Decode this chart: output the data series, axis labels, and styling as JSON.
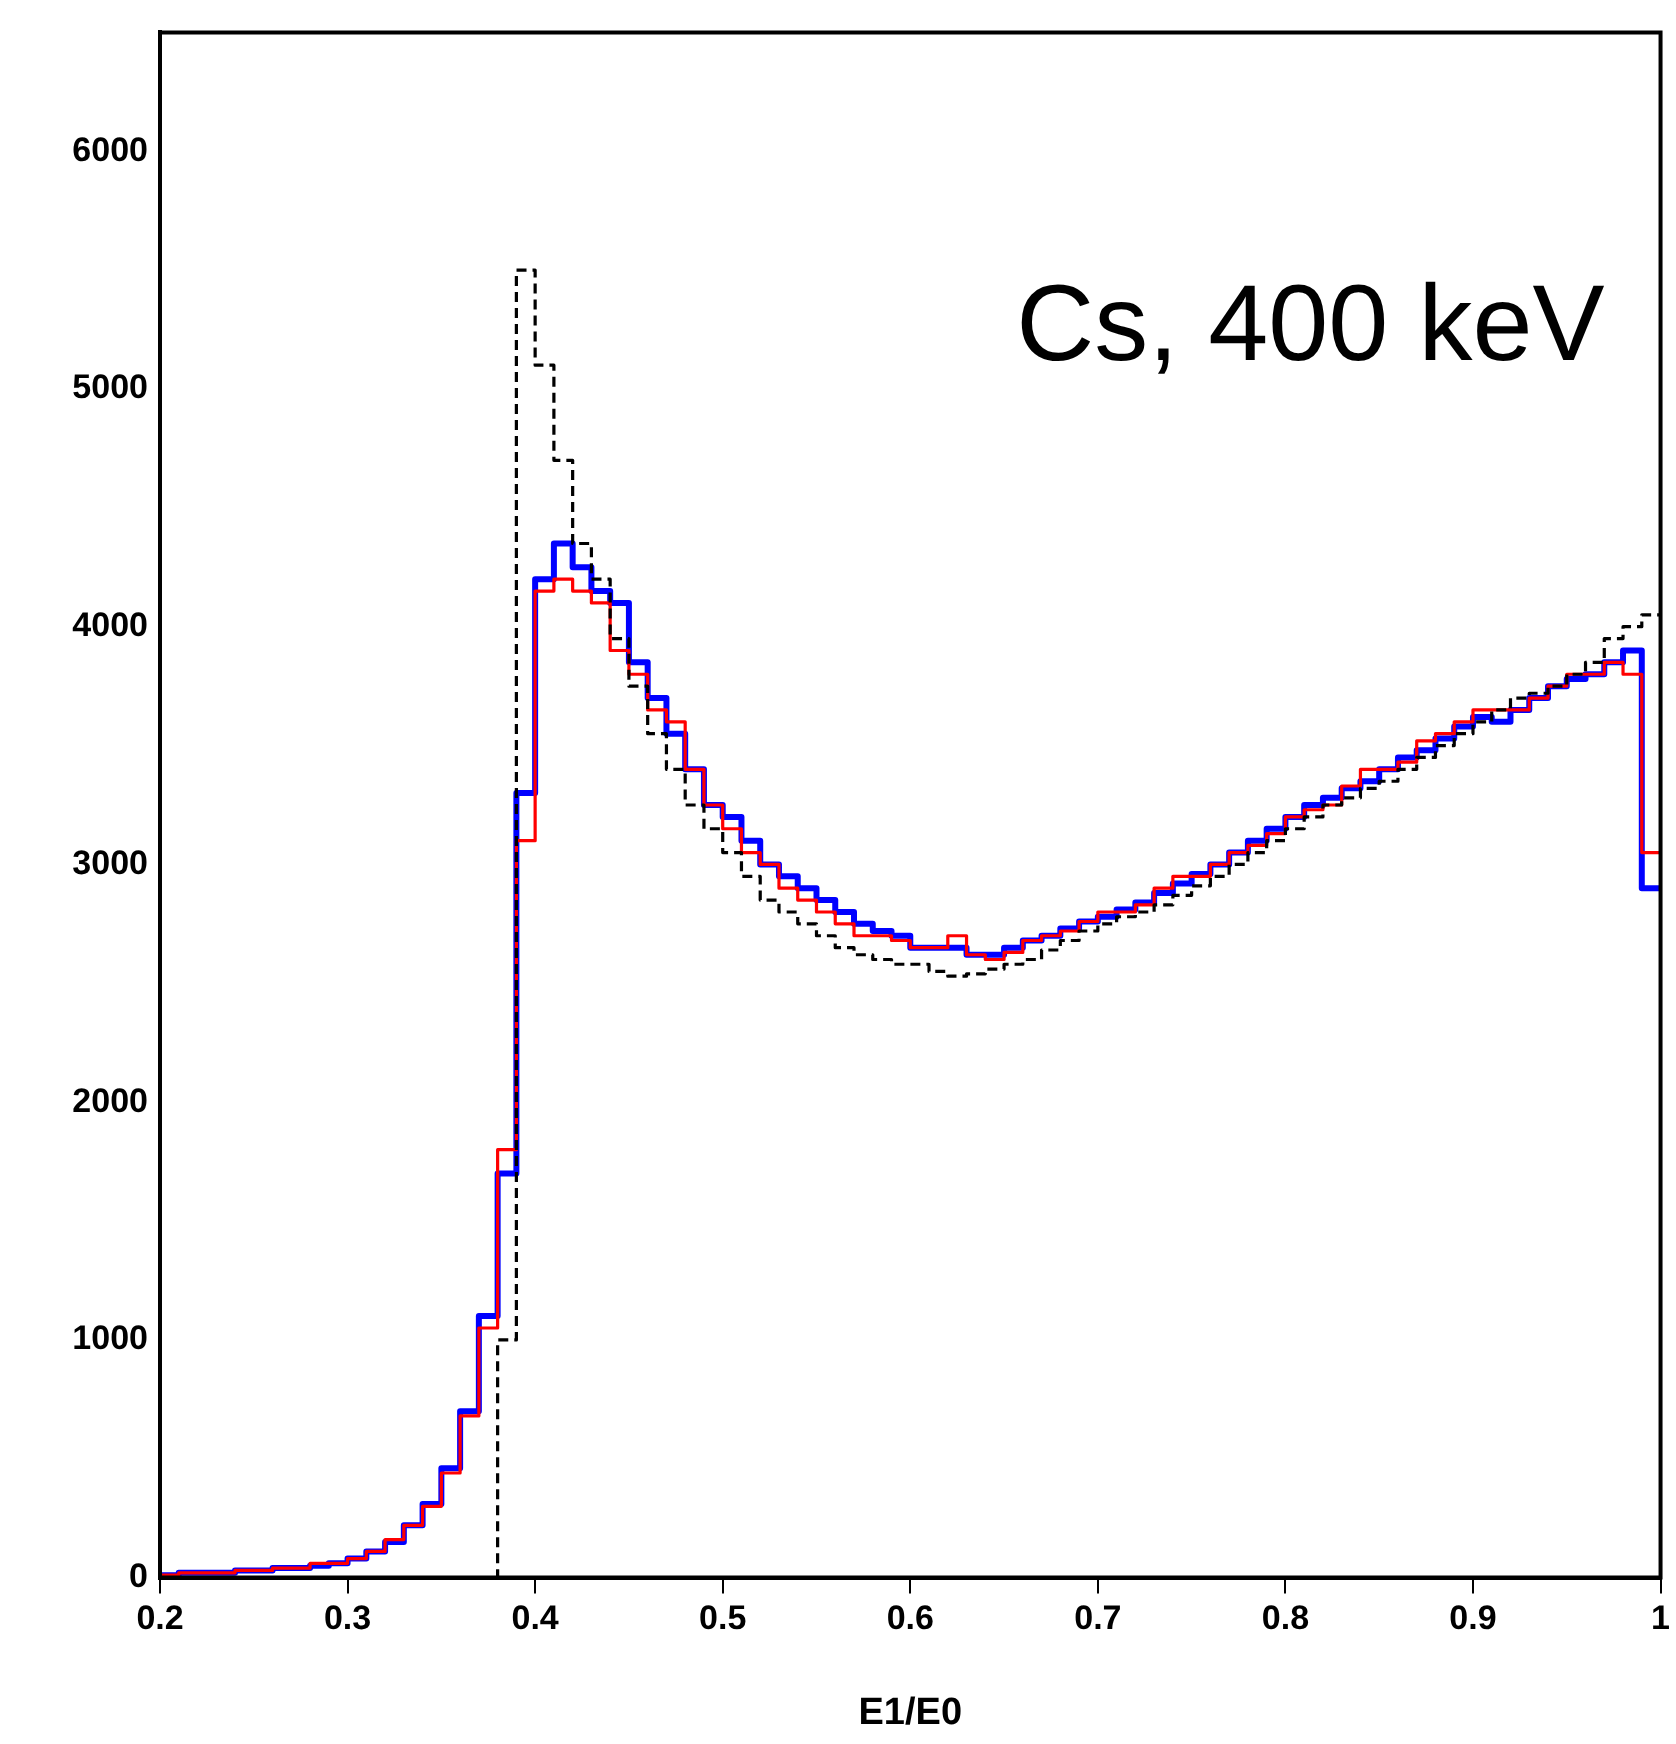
{
  "chart_data": {
    "type": "histogram",
    "xlabel": "E1/E0",
    "annotations": [
      "Cs, 400 keV"
    ],
    "bins": [
      0.2,
      0.21,
      0.22,
      0.23,
      0.24,
      0.25,
      0.26,
      0.27,
      0.28,
      0.29,
      0.3,
      0.31,
      0.32,
      0.33,
      0.34,
      0.35,
      0.36,
      0.37,
      0.38,
      0.39,
      0.4,
      0.41,
      0.42,
      0.43,
      0.44,
      0.45,
      0.46,
      0.47,
      0.48,
      0.49,
      0.5,
      0.51,
      0.52,
      0.53,
      0.54,
      0.55,
      0.56,
      0.57,
      0.58,
      0.59,
      0.6,
      0.61,
      0.62,
      0.63,
      0.64,
      0.65,
      0.66,
      0.67,
      0.68,
      0.69,
      0.7,
      0.71,
      0.72,
      0.73,
      0.74,
      0.75,
      0.76,
      0.77,
      0.78,
      0.79,
      0.8,
      0.81,
      0.82,
      0.83,
      0.84,
      0.85,
      0.86,
      0.87,
      0.88,
      0.89,
      0.9,
      0.91,
      0.92,
      0.93,
      0.94,
      0.95,
      0.96,
      0.97,
      0.98,
      0.99,
      1.0
    ],
    "series": [
      {
        "color": "#000000",
        "line_style": "dashed",
        "values": [
          0,
          0,
          0,
          0,
          0,
          0,
          0,
          0,
          0,
          0,
          0,
          0,
          0,
          0,
          0,
          0,
          0,
          0,
          1000,
          5500,
          5100,
          4700,
          4350,
          4200,
          3950,
          3750,
          3550,
          3400,
          3250,
          3150,
          3050,
          2950,
          2850,
          2800,
          2750,
          2700,
          2650,
          2620,
          2600,
          2580,
          2580,
          2550,
          2530,
          2540,
          2560,
          2580,
          2600,
          2640,
          2680,
          2720,
          2750,
          2780,
          2800,
          2830,
          2870,
          2910,
          2950,
          3000,
          3050,
          3100,
          3150,
          3200,
          3250,
          3280,
          3320,
          3350,
          3400,
          3450,
          3500,
          3550,
          3600,
          3650,
          3700,
          3720,
          3750,
          3800,
          3850,
          3950,
          4000,
          4050
        ]
      },
      {
        "color": "#ff0000",
        "line_style": "solid",
        "values": [
          10,
          20,
          20,
          20,
          30,
          30,
          40,
          40,
          60,
          60,
          80,
          110,
          160,
          220,
          300,
          440,
          680,
          1050,
          1800,
          3100,
          4150,
          4200,
          4150,
          4100,
          3900,
          3800,
          3650,
          3600,
          3400,
          3250,
          3150,
          3050,
          3000,
          2900,
          2850,
          2800,
          2750,
          2700,
          2700,
          2680,
          2650,
          2650,
          2700,
          2620,
          2600,
          2630,
          2680,
          2700,
          2720,
          2760,
          2800,
          2800,
          2830,
          2900,
          2950,
          2950,
          3000,
          3050,
          3080,
          3130,
          3200,
          3230,
          3250,
          3330,
          3400,
          3400,
          3430,
          3520,
          3550,
          3600,
          3650,
          3650,
          3650,
          3700,
          3750,
          3800,
          3800,
          3850,
          3800,
          3050
        ]
      },
      {
        "color": "#0000ff",
        "line_style": "solid",
        "values": [
          10,
          20,
          20,
          20,
          30,
          30,
          40,
          40,
          50,
          60,
          80,
          110,
          150,
          220,
          310,
          460,
          700,
          1100,
          1700,
          3300,
          4200,
          4350,
          4250,
          4150,
          4100,
          3850,
          3700,
          3550,
          3400,
          3250,
          3200,
          3100,
          3000,
          2950,
          2900,
          2850,
          2800,
          2750,
          2720,
          2700,
          2650,
          2650,
          2650,
          2620,
          2620,
          2650,
          2680,
          2700,
          2730,
          2760,
          2780,
          2810,
          2840,
          2880,
          2920,
          2960,
          3000,
          3050,
          3100,
          3150,
          3200,
          3250,
          3280,
          3320,
          3350,
          3400,
          3450,
          3480,
          3530,
          3580,
          3620,
          3600,
          3650,
          3700,
          3750,
          3780,
          3800,
          3850,
          3900,
          2900
        ]
      }
    ],
    "xlim": [
      0.2,
      1.0
    ],
    "xticks": [
      0.2,
      0.3,
      0.4,
      0.5,
      0.6,
      0.7,
      0.8,
      0.9,
      {
        "value": 1.0,
        "label": "1"
      }
    ],
    "ylim": [
      0,
      6500
    ],
    "yticks": [
      0,
      1000,
      2000,
      3000,
      4000,
      5000,
      6000
    ],
    "grid": false,
    "legend": false
  }
}
